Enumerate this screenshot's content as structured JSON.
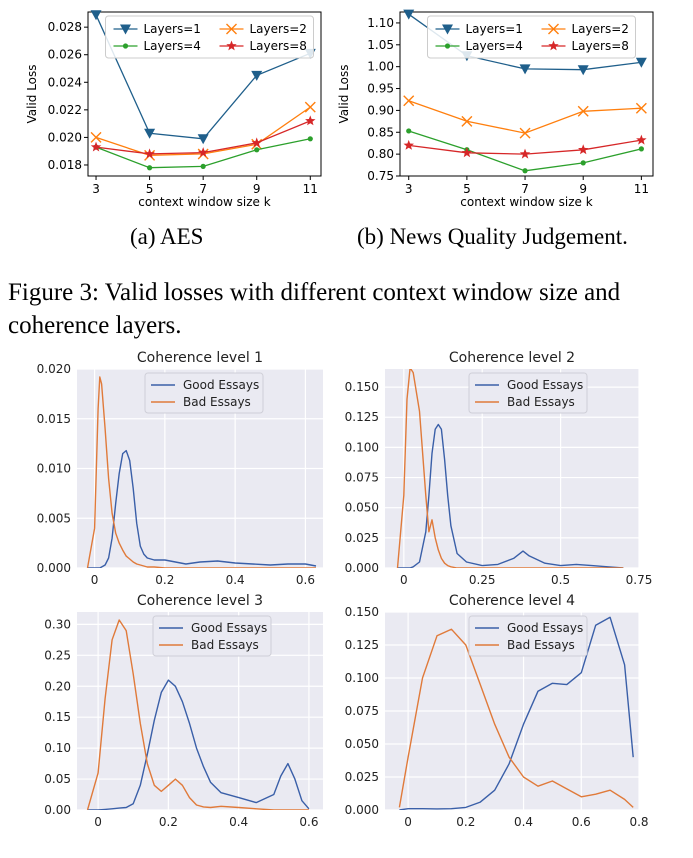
{
  "captions": {
    "sub_a": "(a)  AES",
    "sub_b": "(b)  News Quality Judgement.",
    "figure": "Figure 3: Valid losses with different context window size and coherence layers."
  },
  "chart_data": [
    {
      "id": "aes",
      "type": "line",
      "title": "",
      "xlabel": "context window size k",
      "ylabel": "Valid Loss",
      "x": [
        3,
        5,
        7,
        9,
        11
      ],
      "xticks": [
        "3",
        "5",
        "7",
        "9",
        "11"
      ],
      "ylim": [
        0.0172,
        0.0291
      ],
      "yticks": [
        "0.018",
        "0.020",
        "0.022",
        "0.024",
        "0.026",
        "0.028"
      ],
      "yticks_values": [
        0.018,
        0.02,
        0.022,
        0.024,
        0.026,
        0.028
      ],
      "grid": false,
      "legend_position": "top",
      "series": [
        {
          "name": "Layers=1",
          "values": [
            0.0289,
            0.0203,
            0.0199,
            0.0245,
            0.0261
          ],
          "color": "#1f5f8b",
          "marker": "triangle"
        },
        {
          "name": "Layers=2",
          "values": [
            0.02,
            0.0187,
            0.0188,
            0.0195,
            0.0222
          ],
          "color": "#ff7f0e",
          "marker": "x"
        },
        {
          "name": "Layers=4",
          "values": [
            0.0193,
            0.0178,
            0.0179,
            0.0191,
            0.0199
          ],
          "color": "#2ca02c",
          "marker": "dot"
        },
        {
          "name": "Layers=8",
          "values": [
            0.0193,
            0.0188,
            0.0189,
            0.0196,
            0.0212
          ],
          "color": "#d62728",
          "marker": "star"
        }
      ]
    },
    {
      "id": "news",
      "type": "line",
      "title": "",
      "xlabel": "context window size k",
      "ylabel": "Valid Loss",
      "x": [
        3,
        5,
        7,
        9,
        11
      ],
      "xticks": [
        "3",
        "5",
        "7",
        "9",
        "11"
      ],
      "ylim": [
        0.75,
        1.125
      ],
      "yticks": [
        "0.75",
        "0.80",
        "0.85",
        "0.90",
        "0.95",
        "1.00",
        "1.05",
        "1.10"
      ],
      "yticks_values": [
        0.75,
        0.8,
        0.85,
        0.9,
        0.95,
        1.0,
        1.05,
        1.1
      ],
      "grid": false,
      "legend_position": "top",
      "series": [
        {
          "name": "Layers=1",
          "values": [
            1.12,
            1.025,
            0.995,
            0.993,
            1.01
          ],
          "color": "#1f5f8b",
          "marker": "triangle"
        },
        {
          "name": "Layers=2",
          "values": [
            0.922,
            0.875,
            0.848,
            0.898,
            0.905
          ],
          "color": "#ff7f0e",
          "marker": "x"
        },
        {
          "name": "Layers=4",
          "values": [
            0.853,
            0.81,
            0.762,
            0.78,
            0.812
          ],
          "color": "#2ca02c",
          "marker": "dot"
        },
        {
          "name": "Layers=8",
          "values": [
            0.82,
            0.803,
            0.8,
            0.81,
            0.832
          ],
          "color": "#d62728",
          "marker": "star"
        }
      ]
    },
    {
      "id": "coh1",
      "type": "line",
      "title": "Coherence level 1",
      "xlabel": "",
      "ylabel": "",
      "x": [
        -0.02,
        0.0,
        0.01,
        0.015,
        0.02,
        0.03,
        0.04,
        0.05,
        0.06,
        0.07,
        0.08,
        0.09,
        0.1,
        0.11,
        0.12,
        0.13,
        0.14,
        0.15,
        0.17,
        0.2,
        0.23,
        0.26,
        0.3,
        0.35,
        0.4,
        0.45,
        0.5,
        0.55,
        0.6,
        0.63
      ],
      "xlim": [
        -0.05,
        0.65
      ],
      "xticks": [
        "0",
        "0.2",
        "0.4",
        "0.6"
      ],
      "xticks_values": [
        0,
        0.2,
        0.4,
        0.6
      ],
      "ylim": [
        0,
        0.02
      ],
      "yticks": [
        "0.000",
        "0.005",
        "0.010",
        "0.015",
        "0.020"
      ],
      "yticks_values": [
        0,
        0.005,
        0.01,
        0.015,
        0.02
      ],
      "grid": true,
      "legend_position": "top-center",
      "series": [
        {
          "name": "Good Essays",
          "color": "#3a5fa8",
          "values": [
            0,
            0,
            0,
            0,
            0.0001,
            0.0003,
            0.001,
            0.003,
            0.0065,
            0.0095,
            0.0115,
            0.0118,
            0.0108,
            0.008,
            0.0045,
            0.0022,
            0.0014,
            0.001,
            0.0008,
            0.0008,
            0.0006,
            0.0004,
            0.0006,
            0.0007,
            0.0005,
            0.0004,
            0.0003,
            0.0004,
            0.0004,
            0.0002
          ]
        },
        {
          "name": "Bad Essays",
          "color": "#e07a3a",
          "values": [
            0,
            0.004,
            0.016,
            0.0192,
            0.0185,
            0.014,
            0.009,
            0.0055,
            0.0035,
            0.0025,
            0.0018,
            0.0012,
            0.0009,
            0.0006,
            0.0004,
            0.0003,
            0.0002,
            0.0001,
            0.0001,
            0,
            0,
            0,
            0,
            0,
            0,
            0,
            0,
            0,
            0,
            0
          ]
        }
      ]
    },
    {
      "id": "coh2",
      "type": "line",
      "title": "Coherence level 2",
      "xlabel": "",
      "ylabel": "",
      "x": [
        -0.02,
        0.0,
        0.01,
        0.02,
        0.03,
        0.05,
        0.07,
        0.08,
        0.09,
        0.1,
        0.11,
        0.12,
        0.13,
        0.14,
        0.15,
        0.17,
        0.2,
        0.25,
        0.3,
        0.35,
        0.38,
        0.4,
        0.45,
        0.5,
        0.55,
        0.6,
        0.65,
        0.7
      ],
      "xlim": [
        -0.06,
        0.75
      ],
      "xticks": [
        "0",
        "0.25",
        "0.5",
        "0.75"
      ],
      "xticks_values": [
        0,
        0.25,
        0.5,
        0.75
      ],
      "ylim": [
        0,
        0.165
      ],
      "yticks": [
        "0.000",
        "0.025",
        "0.050",
        "0.075",
        "0.100",
        "0.125",
        "0.150"
      ],
      "yticks_values": [
        0,
        0.025,
        0.05,
        0.075,
        0.1,
        0.125,
        0.15
      ],
      "grid": true,
      "legend_position": "top-right",
      "series": [
        {
          "name": "Good Essays",
          "color": "#3a5fa8",
          "values": [
            0,
            0,
            0,
            0,
            0.001,
            0.005,
            0.03,
            0.06,
            0.095,
            0.115,
            0.119,
            0.115,
            0.09,
            0.06,
            0.035,
            0.012,
            0.005,
            0.002,
            0.003,
            0.008,
            0.014,
            0.01,
            0.004,
            0.002,
            0.003,
            0.002,
            0.001,
            0
          ]
        },
        {
          "name": "Bad Essays",
          "color": "#e07a3a",
          "values": [
            0,
            0.06,
            0.14,
            0.166,
            0.162,
            0.13,
            0.06,
            0.03,
            0.04,
            0.025,
            0.015,
            0.008,
            0.004,
            0.002,
            0.001,
            0,
            0,
            0,
            0,
            0,
            0,
            0,
            0,
            0,
            0,
            0,
            0,
            0
          ]
        }
      ]
    },
    {
      "id": "coh3",
      "type": "line",
      "title": "Coherence level 3",
      "xlabel": "",
      "ylabel": "",
      "x": [
        -0.03,
        0.0,
        0.02,
        0.04,
        0.06,
        0.08,
        0.1,
        0.12,
        0.14,
        0.16,
        0.18,
        0.2,
        0.22,
        0.24,
        0.26,
        0.28,
        0.3,
        0.32,
        0.35,
        0.4,
        0.45,
        0.5,
        0.52,
        0.54,
        0.56,
        0.58,
        0.6
      ],
      "xlim": [
        -0.06,
        0.64
      ],
      "xticks": [
        "0",
        "0.2",
        "0.4",
        "0.6"
      ],
      "xticks_values": [
        0,
        0.2,
        0.4,
        0.6
      ],
      "ylim": [
        0,
        0.32
      ],
      "yticks": [
        "0.00",
        "0.05",
        "0.10",
        "0.15",
        "0.20",
        "0.25",
        "0.30"
      ],
      "yticks_values": [
        0,
        0.05,
        0.1,
        0.15,
        0.2,
        0.25,
        0.3
      ],
      "grid": true,
      "legend_position": "top-right",
      "series": [
        {
          "name": "Good Essays",
          "color": "#3a5fa8",
          "values": [
            0,
            0,
            0.001,
            0.002,
            0.003,
            0.004,
            0.01,
            0.04,
            0.09,
            0.145,
            0.19,
            0.21,
            0.2,
            0.175,
            0.14,
            0.1,
            0.07,
            0.045,
            0.028,
            0.02,
            0.012,
            0.025,
            0.055,
            0.075,
            0.05,
            0.015,
            0.002
          ]
        },
        {
          "name": "Bad Essays",
          "color": "#e07a3a",
          "values": [
            0,
            0.06,
            0.18,
            0.275,
            0.307,
            0.29,
            0.22,
            0.14,
            0.075,
            0.04,
            0.03,
            0.04,
            0.05,
            0.04,
            0.02,
            0.008,
            0.005,
            0.004,
            0.006,
            0.004,
            0.002,
            0,
            0,
            0,
            0,
            0,
            0
          ]
        }
      ]
    },
    {
      "id": "coh4",
      "type": "line",
      "title": "Coherence level 4",
      "xlabel": "",
      "ylabel": "",
      "x": [
        -0.03,
        0.0,
        0.05,
        0.1,
        0.15,
        0.2,
        0.25,
        0.3,
        0.35,
        0.4,
        0.45,
        0.5,
        0.55,
        0.6,
        0.65,
        0.7,
        0.75,
        0.78
      ],
      "xlim": [
        -0.08,
        0.8
      ],
      "xticks": [
        "0",
        "0.2",
        "0.4",
        "0.6",
        "0.8"
      ],
      "xticks_values": [
        0,
        0.2,
        0.4,
        0.6,
        0.8
      ],
      "ylim": [
        0,
        0.15
      ],
      "yticks": [
        "0.000",
        "0.025",
        "0.050",
        "0.075",
        "0.100",
        "0.125",
        "0.150"
      ],
      "yticks_values": [
        0,
        0.025,
        0.05,
        0.075,
        0.1,
        0.125,
        0.15
      ],
      "grid": true,
      "legend_position": "top-right",
      "series": [
        {
          "name": "Good Essays",
          "color": "#3a5fa8",
          "values": [
            0,
            0.001,
            0.001,
            0.0008,
            0.001,
            0.002,
            0.006,
            0.015,
            0.035,
            0.065,
            0.09,
            0.096,
            0.095,
            0.104,
            0.14,
            0.146,
            0.11,
            0.04
          ]
        },
        {
          "name": "Bad Essays",
          "color": "#e07a3a",
          "values": [
            0.002,
            0.04,
            0.1,
            0.132,
            0.137,
            0.125,
            0.095,
            0.065,
            0.04,
            0.025,
            0.018,
            0.022,
            0.016,
            0.01,
            0.012,
            0.015,
            0.008,
            0.002
          ]
        }
      ]
    }
  ]
}
